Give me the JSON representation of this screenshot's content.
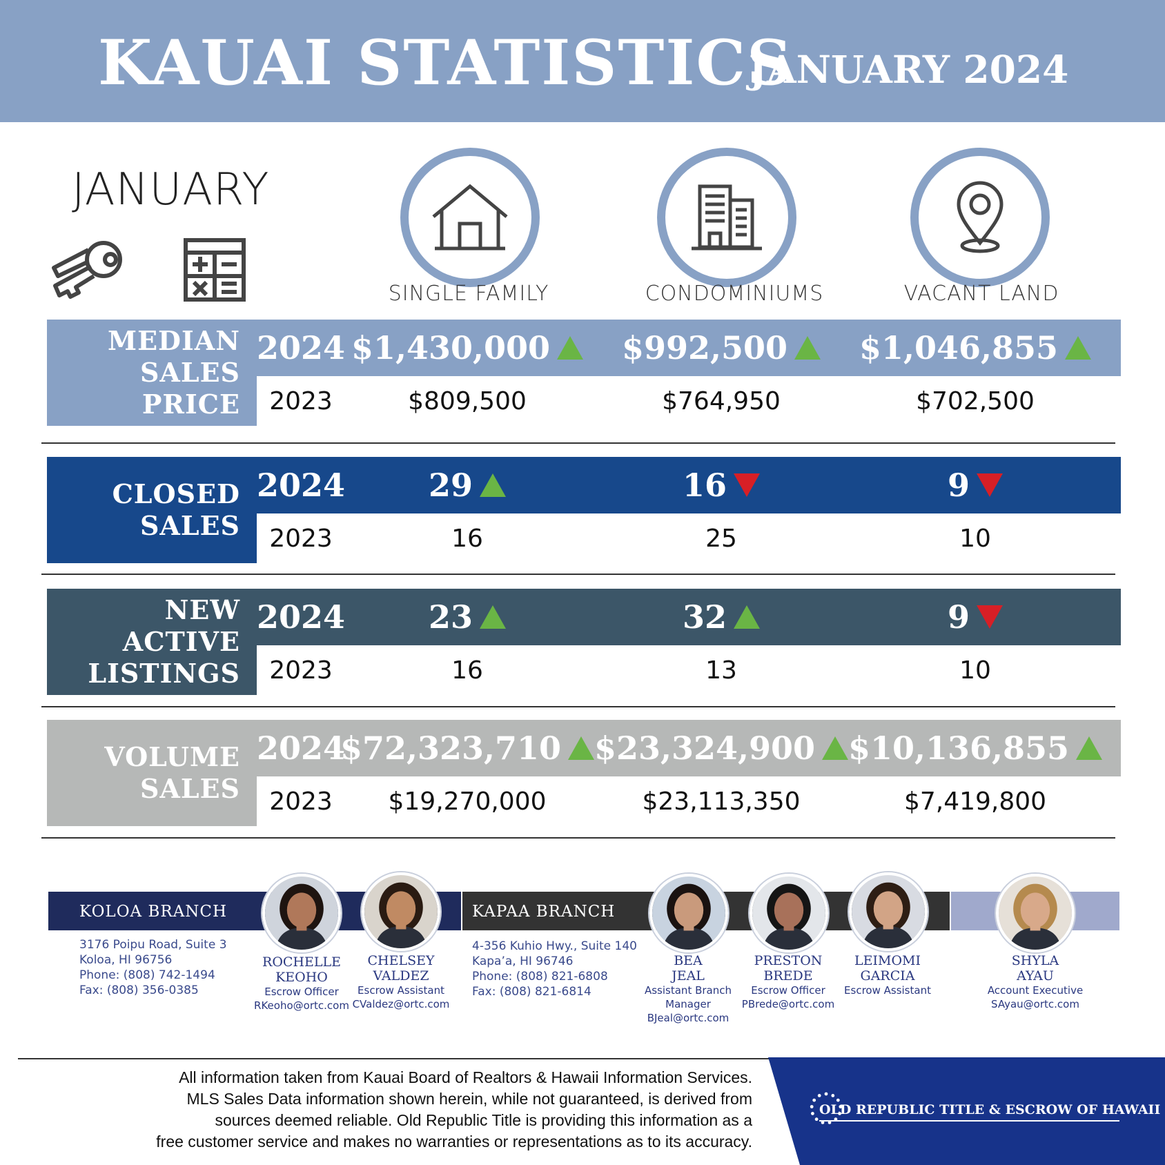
{
  "header": {
    "title": "KAUAI STATISTICS",
    "subtitle": "JANUARY 2024"
  },
  "month_label": "JANUARY",
  "categories": [
    {
      "label": "SINGLE FAMILY",
      "icon": "house-icon"
    },
    {
      "label": "CONDOMINIUMS",
      "icon": "building-icon"
    },
    {
      "label": "VACANT LAND",
      "icon": "map-pin-icon"
    }
  ],
  "stats": [
    {
      "label_line1": "MEDIAN",
      "label_line2": "SALES PRICE",
      "color": "#88a1c5",
      "year_current": "2024",
      "year_prior": "2023",
      "current": [
        "$1,430,000",
        "$992,500",
        "$1,046,855"
      ],
      "trend": [
        "up",
        "up",
        "up"
      ],
      "prior": [
        "$809,500",
        "$764,950",
        "$702,500"
      ]
    },
    {
      "label_line1": "CLOSED",
      "label_line2": "SALES",
      "color": "#17488b",
      "year_current": "2024",
      "year_prior": "2023",
      "current": [
        "29",
        "16",
        "9"
      ],
      "trend": [
        "up",
        "down",
        "down"
      ],
      "prior": [
        "16",
        "25",
        "10"
      ]
    },
    {
      "label_line1": "NEW ACTIVE",
      "label_line2": "LISTINGS",
      "color": "#3c5668",
      "year_current": "2024",
      "year_prior": "2023",
      "current": [
        "23",
        "32",
        "9"
      ],
      "trend": [
        "up",
        "up",
        "down"
      ],
      "prior": [
        "16",
        "13",
        "10"
      ]
    },
    {
      "label_line1": "VOLUME",
      "label_line2": "SALES",
      "color": "#b6b8b7",
      "year_current": "2024",
      "year_prior": "2023",
      "current": [
        "$72,323,710",
        "$23,324,900",
        "$10,136,855"
      ],
      "trend": [
        "up",
        "up",
        "up"
      ],
      "prior": [
        "$19,270,000",
        "$23,113,350",
        "$7,419,800"
      ]
    }
  ],
  "trend_colors": {
    "up": "#6ab545",
    "down": "#d71f26"
  },
  "branches": {
    "koloa": {
      "name": "KOLOA BRANCH",
      "address": [
        "3176 Poipu Road, Suite 3",
        "Koloa, HI 96756",
        "Phone: (808) 742-1494",
        "Fax: (808) 356-0385"
      ]
    },
    "kapaa": {
      "name": "KAPAA BRANCH",
      "address": [
        "4-356 Kuhio Hwy., Suite 140",
        "Kapa’a, HI 96746",
        "Phone: (808) 821-6808",
        "Fax: (808) 821-6814"
      ]
    }
  },
  "people": [
    {
      "name1": "ROCHELLE",
      "name2": "KEOHO",
      "role": "Escrow Officer",
      "email": "RKeoho@ortc.com"
    },
    {
      "name1": "CHELSEY",
      "name2": "VALDEZ",
      "role": "Escrow Assistant",
      "email": "CValdez@ortc.com"
    },
    {
      "name1": "BEA",
      "name2": "JEAL",
      "role": "Assistant Branch",
      "role2": "Manager",
      "email": "BJeal@ortc.com"
    },
    {
      "name1": "PRESTON",
      "name2": "BREDE",
      "role": "Escrow Officer",
      "email": "PBrede@ortc.com"
    },
    {
      "name1": "LEIMOMI",
      "name2": "GARCIA",
      "role": "Escrow Assistant",
      "email": ""
    },
    {
      "name1": "SHYLA",
      "name2": "AYAU",
      "role": "Account Executive",
      "email": "SAyau@ortc.com"
    }
  ],
  "disclaimer": [
    "All information taken from Kauai Board of Realtors & Hawaii Information Services.",
    "MLS Sales Data information shown herein, while not guaranteed, is derived from",
    "sources deemed reliable. Old Republic  Title is providing this information as a",
    "free customer service and makes no warranties or representations as to its accuracy."
  ],
  "brand": "OLD REPUBLIC TITLE & ESCROW OF HAWAII"
}
